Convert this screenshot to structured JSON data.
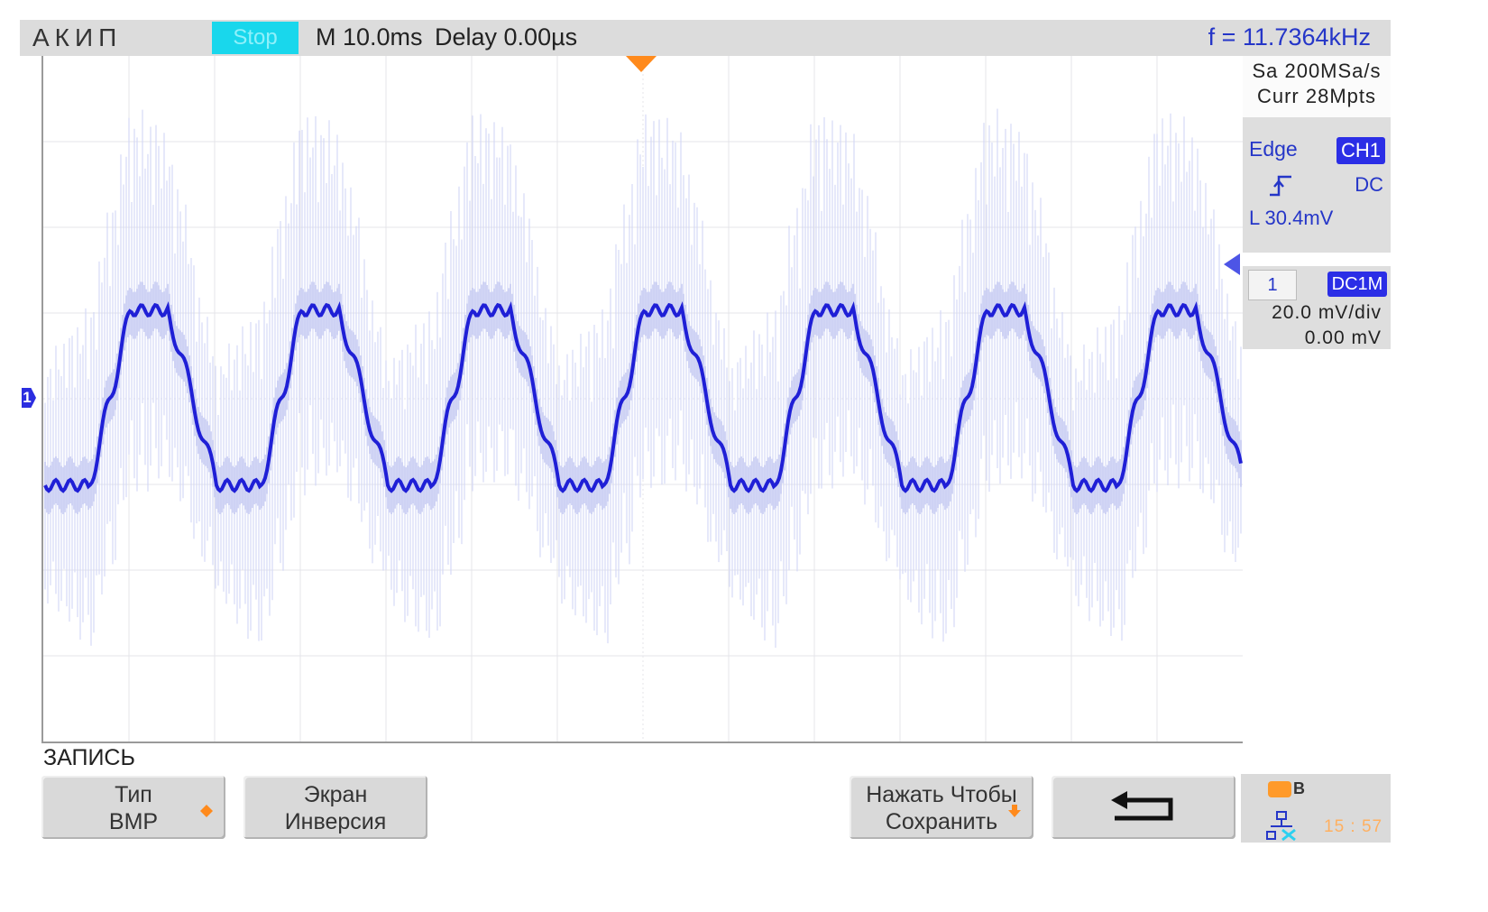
{
  "header": {
    "brand": "АКИП",
    "run_state": "Stop",
    "timebase": "M 10.0ms",
    "delay": "Delay 0.00µs",
    "frequency": "f = 11.7364kHz"
  },
  "acquisition": {
    "sample_rate": "Sa 200MSa/s",
    "memory": "Curr 28Mpts"
  },
  "trigger": {
    "mode": "Edge",
    "source": "CH1",
    "slope_icon": "rising-edge-icon",
    "coupling": "DC",
    "level": "L  30.4mV"
  },
  "channel": {
    "number": "1",
    "coupling": "DC1M",
    "scale": "20.0 mV/div",
    "offset": "0.00 mV",
    "marker": "1",
    "color": "#1f1fd6"
  },
  "menu": {
    "title": "ЗАПИСЬ",
    "softkeys": [
      {
        "line1": "Тип",
        "line2": "BMP",
        "has_arrow": true
      },
      {
        "line1": "Экран",
        "line2": "Инверсия",
        "has_arrow": false
      },
      {
        "line1": "Нажать Чтобы",
        "line2": "Сохранить",
        "has_arrow": true
      },
      {
        "icon": "return-arrow-icon"
      }
    ]
  },
  "status": {
    "usb_label": "B",
    "time": "15 : 57"
  },
  "colors": {
    "trace": "#1f1fd6",
    "envelope": "#d2d6f6",
    "accent_orange": "#ff8a1c",
    "run_badge": "#19d7ec"
  }
}
